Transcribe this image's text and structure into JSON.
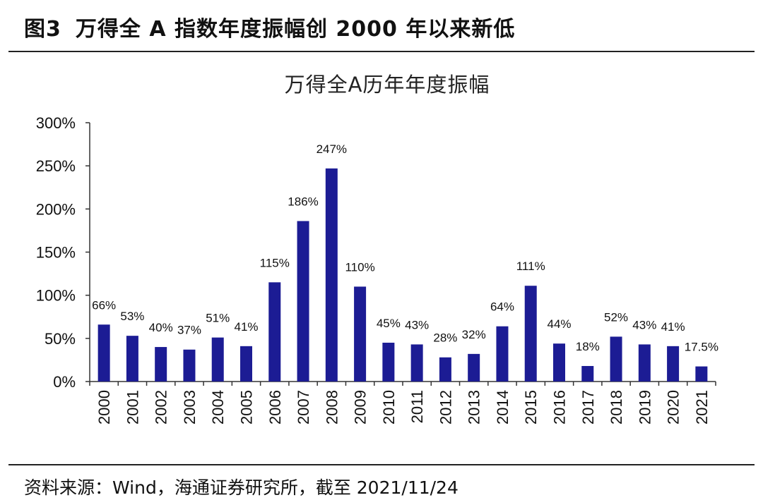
{
  "header": {
    "figure_number": "图3",
    "title": "万得全 A 指数年度振幅创 2000 年以来新低"
  },
  "source_note": "资料来源：Wind，海通证券研究所，截至 2021/11/24",
  "colors": {
    "bar": "#1c1c94",
    "axis": "#333333",
    "rule": "#222222"
  },
  "chart_data": {
    "type": "bar",
    "title": "万得全A历年年度振幅",
    "xlabel": "",
    "ylabel": "",
    "ylim": [
      0,
      300
    ],
    "yticks": [
      0,
      50,
      100,
      150,
      200,
      250,
      300
    ],
    "ytick_labels": [
      "0%",
      "50%",
      "100%",
      "150%",
      "200%",
      "250%",
      "300%"
    ],
    "grid": false,
    "legend": "none",
    "categories": [
      "2000",
      "2001",
      "2002",
      "2003",
      "2004",
      "2005",
      "2006",
      "2007",
      "2008",
      "2009",
      "2010",
      "2011",
      "2012",
      "2013",
      "2014",
      "2015",
      "2016",
      "2017",
      "2018",
      "2019",
      "2020",
      "2021"
    ],
    "values": [
      66,
      53,
      40,
      37,
      51,
      41,
      115,
      186,
      247,
      110,
      45,
      43,
      28,
      32,
      64,
      111,
      44,
      18,
      52,
      43,
      41,
      17.5
    ],
    "data_labels": [
      "66%",
      "53%",
      "40%",
      "37%",
      "51%",
      "41%",
      "115%",
      "186%",
      "247%",
      "110%",
      "45%",
      "43%",
      "28%",
      "32%",
      "64%",
      "111%",
      "44%",
      "18%",
      "52%",
      "43%",
      "41%",
      "17.5%"
    ]
  }
}
